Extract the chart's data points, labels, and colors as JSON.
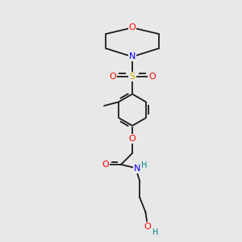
{
  "bg_color": "#e8e8e8",
  "atom_colors": {
    "C": "#000000",
    "N": "#0000ff",
    "O": "#ff0000",
    "S": "#ccaa00",
    "H": "#008080"
  },
  "bond_color": "#1a1a1a",
  "bond_lw": 1.3
}
